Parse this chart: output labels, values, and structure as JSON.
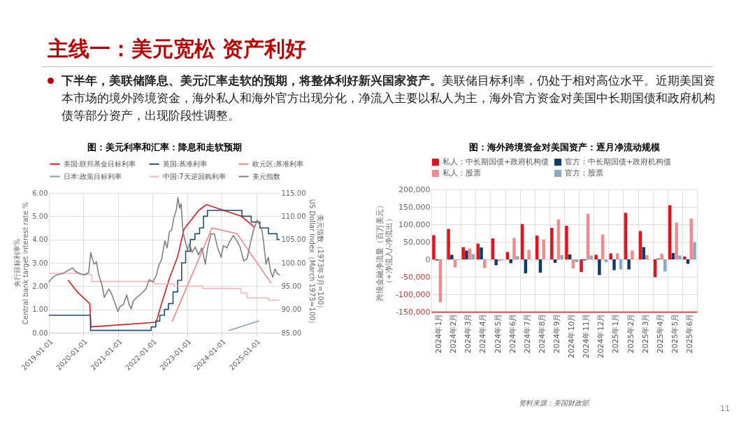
{
  "chart_data": [
    {
      "type": "other",
      "title": "主线一：美元宽松 资产利好",
      "annotations": [
        "下半年，美联储降息、美元汇率走软的预期，将整体利好新兴国家资产。",
        "美联储目标利率，仍处于相对高位水平。近期美国资本市场的境外跨境资金，海外私人和海外官方出现分化，净流入主要以私人为主，海外官方资金对美国中长期国债和政府机构债等部分资产，出现阶段性调整。",
        "11"
      ]
    },
    {
      "type": "line",
      "title": "图：美元利率和汇率：降息和走软预期",
      "ylabel": "央行目标利率%\nCentral bank target interest rate %",
      "y2label": "美元指数（1973年3月=100）\nUS Dollar Index（March 1973=100）",
      "xlim": [
        "2019-01-01",
        "2025-09-03"
      ],
      "xticks": [
        "2019-01-01",
        "2020-01-01",
        "2021-01-01",
        "2022-01-01",
        "2023-01-01",
        "2024-01-01",
        "2025-01-01"
      ],
      "ylim": [
        0,
        6
      ],
      "yticks": [
        {
          "value": 0,
          "label": "0.00"
        },
        {
          "value": 1,
          "label": "1.00"
        },
        {
          "value": 2,
          "label": "2.00"
        },
        {
          "value": 3,
          "label": "3.00"
        },
        {
          "value": 4,
          "label": "4.00"
        },
        {
          "value": 5,
          "label": "5.00"
        },
        {
          "value": 6,
          "label": "6.00"
        }
      ],
      "y2lim": [
        85,
        115
      ],
      "y2ticks": [
        {
          "value": 85,
          "label": "85.00"
        },
        {
          "value": 90,
          "label": "90.00"
        },
        {
          "value": 95,
          "label": "95.00"
        },
        {
          "value": 100,
          "label": "100.00"
        },
        {
          "value": 105,
          "label": "105.00"
        },
        {
          "value": 110,
          "label": "110.00"
        },
        {
          "value": 115,
          "label": "115.00"
        }
      ],
      "grid": true,
      "legend": "top",
      "series": [
        {
          "name": "美国:联邦基金目标利率",
          "color": "#e5161d",
          "type": "line",
          "x": [
            "2019-07-24",
            "2019-10-28",
            "2020-03-07",
            "2020-03-19",
            "2022-02-06",
            "2022-04-05",
            "2022-06-28",
            "2022-09-20",
            "2022-11-29",
            "2023-05-01",
            "2023-07-24",
            "2024-07-26",
            "2024-12-06"
          ],
          "values": [
            2.25,
            1.75,
            1.25,
            0.25,
            0.45,
            1.25,
            2.35,
            3.25,
            4.45,
            5.25,
            5.5,
            5.0,
            4.55
          ]
        },
        {
          "name": "英国:基准利率",
          "color": "#1f4e79",
          "type": "step",
          "x": [
            "2019-01-01",
            "2020-03-15",
            "2021-12-16",
            "2022-02-03",
            "2022-03-17",
            "2022-05-05",
            "2022-06-16",
            "2022-08-04",
            "2022-09-22",
            "2022-11-03",
            "2022-12-15",
            "2023-02-02",
            "2023-03-23",
            "2023-05-11",
            "2023-06-22",
            "2023-08-03",
            "2024-08-01",
            "2024-11-07",
            "2025-02-06",
            "2025-05-08",
            "2025-08-07",
            "2025-09-03"
          ],
          "values": [
            0.75,
            0.1,
            0.25,
            0.5,
            0.75,
            1.0,
            1.25,
            1.75,
            2.25,
            3.0,
            3.5,
            4.0,
            4.25,
            4.5,
            5.0,
            5.25,
            5.0,
            4.75,
            4.5,
            4.25,
            4.0,
            4.0
          ]
        },
        {
          "name": "欧元区:基准利率",
          "color": "#f4837d",
          "type": "line",
          "x": [
            "2022-07-27",
            "2023-09-20",
            "2024-06-10",
            "2025-06-01"
          ],
          "values": [
            0.5,
            4.5,
            4.25,
            2.15
          ]
        },
        {
          "name": "日本:政策目标利率",
          "color": "#7fa3b8",
          "type": "line",
          "x": [
            "2024-03-19",
            "2025-01-24"
          ],
          "values": [
            0.1,
            0.5
          ]
        },
        {
          "name": "中国:7天逆回购利率",
          "color": "#f7b6b2",
          "type": "step",
          "x": [
            "2019-01-01",
            "2019-11-18",
            "2020-03-30",
            "2022-01-17",
            "2022-08-15",
            "2023-06-13",
            "2024-07-22",
            "2024-09-24",
            "2025-05-08",
            "2025-09-03"
          ],
          "values": [
            2.55,
            2.5,
            2.2,
            2.1,
            2.0,
            1.9,
            1.7,
            1.5,
            1.4,
            1.4
          ]
        },
        {
          "name": "美元指数",
          "color": "#7f7f7f",
          "type": "line",
          "axis": "y2",
          "x": [
            "2019-01-01",
            "2019-02-10",
            "2019-03-27",
            "2019-05-26",
            "2019-07-24",
            "2019-09-11",
            "2019-10-05",
            "2019-11-21",
            "2020-01-08",
            "2020-02-25",
            "2020-03-18",
            "2020-03-30",
            "2020-04-23",
            "2020-05-17",
            "2020-06-10",
            "2020-07-15",
            "2020-08-08",
            "2020-09-02",
            "2020-09-25",
            "2020-10-19",
            "2020-11-24",
            "2020-12-29",
            "2021-01-22",
            "2021-02-27",
            "2021-04-02",
            "2021-04-26",
            "2021-05-19",
            "2021-06-12",
            "2021-07-17",
            "2021-09-04",
            "2021-10-21",
            "2021-11-26",
            "2022-01-01",
            "2022-02-06",
            "2022-03-11",
            "2022-04-04",
            "2022-05-10",
            "2022-06-03",
            "2022-06-27",
            "2022-07-20",
            "2022-08-13",
            "2022-09-06",
            "2022-09-25",
            "2022-10-12",
            "2022-10-28",
            "2022-11-17",
            "2022-12-10",
            "2023-01-03",
            "2023-01-27",
            "2023-02-20",
            "2023-03-26",
            "2023-05-01",
            "2023-06-05",
            "2023-07-11",
            "2023-08-04",
            "2023-09-09",
            "2023-10-14",
            "2023-11-19",
            "2023-12-25",
            "2024-01-18",
            "2024-02-23",
            "2024-03-28",
            "2024-05-03",
            "2024-06-08",
            "2024-07-13",
            "2024-08-19",
            "2024-09-24",
            "2024-10-29",
            "2024-12-04",
            "2025-01-09",
            "2025-02-02",
            "2025-02-26",
            "2025-03-19",
            "2025-04-12",
            "2025-05-06",
            "2025-05-30",
            "2025-06-23",
            "2025-07-16",
            "2025-08-09",
            "2025-09-03"
          ],
          "values": [
            95.9,
            96.9,
            97.4,
            97.7,
            98.4,
            98.9,
            98.2,
            97.7,
            97.4,
            97.9,
            102.2,
            101.2,
            99.7,
            100.2,
            97.4,
            95.2,
            92.6,
            93.6,
            94.4,
            93.6,
            91.6,
            89.6,
            90.6,
            91.1,
            93.1,
            91.1,
            90.1,
            91.9,
            92.6,
            93.4,
            94.4,
            96.4,
            95.9,
            97.2,
            99.7,
            100.7,
            104.7,
            103.2,
            106.7,
            107.0,
            109.7,
            111.2,
            114.0,
            111.7,
            112.7,
            106.7,
            104.7,
            102.7,
            104.2,
            102.2,
            103.4,
            101.7,
            103.2,
            99.7,
            103.2,
            106.2,
            106.2,
            103.2,
            101.2,
            103.7,
            103.2,
            104.7,
            105.9,
            104.7,
            103.4,
            100.4,
            100.9,
            104.2,
            107.2,
            109.2,
            108.2,
            107.2,
            104.2,
            99.7,
            101.2,
            98.2,
            96.9,
            98.7,
            97.7,
            97.4
          ]
        }
      ]
    },
    {
      "type": "bar",
      "title": "图：海外跨境资金对美国资产：逐月净流动规模",
      "ylabel": "跨境金融净流量（百万美元）（+净流入/-净流出）",
      "categories": [
        "2024年1月",
        "2024年2月",
        "2024年3月",
        "2024年4月",
        "2024年5月",
        "2024年6月",
        "2024年7月",
        "2024年8月",
        "2024年9月",
        "2024年10月",
        "2024年11月",
        "2024年12月",
        "2025年1月",
        "2025年2月",
        "2025年3月",
        "2025年4月",
        "2025年5月",
        "2025年6月"
      ],
      "ylim": [
        -150000,
        200000
      ],
      "yticks": [
        {
          "value": -150000,
          "label": "-150,000"
        },
        {
          "value": -100000,
          "label": "-100,000"
        },
        {
          "value": -50000,
          "label": "-50,000"
        },
        0,
        {
          "value": 50000,
          "label": "50,000"
        },
        {
          "value": 100000,
          "label": "100,000"
        },
        {
          "value": 150000,
          "label": "150,000"
        },
        {
          "value": 200000,
          "label": "200,000"
        }
      ],
      "grid": true,
      "legend": "top",
      "annotations": [
        "资料来源：美国财政部"
      ],
      "series": [
        {
          "name": "私人：中长期国债+政府机构债",
          "color": "#e8101a",
          "values": [
            69000,
            87000,
            35000,
            45000,
            60000,
            21000,
            101000,
            68000,
            90000,
            96000,
            -36000,
            13000,
            17000,
            133000,
            81000,
            -51000,
            155000,
            8000
          ]
        },
        {
          "name": "官方：中长期国债+政府机构债",
          "color": "#0f3d6b",
          "values": [
            -3000,
            13000,
            25000,
            34000,
            -17000,
            -11000,
            -40000,
            -38000,
            -10000,
            14000,
            -3000,
            -45000,
            -31000,
            -29000,
            35000,
            2000,
            18000,
            -13000
          ]
        },
        {
          "name": "私人：股票",
          "color": "#f28b8b",
          "values": [
            -123000,
            -23000,
            31000,
            -25000,
            -5000,
            61000,
            27000,
            57000,
            114000,
            -26000,
            130000,
            71000,
            17000,
            25000,
            12000,
            16000,
            105000,
            117000
          ]
        },
        {
          "name": "官方：股票",
          "color": "#8aa8c2",
          "values": [
            null,
            -2000,
            15000,
            -1000,
            -2000,
            9000,
            null,
            null,
            12000,
            -8000,
            11000,
            -8000,
            -29000,
            null,
            null,
            -35000,
            11000,
            49000
          ]
        }
      ]
    }
  ]
}
